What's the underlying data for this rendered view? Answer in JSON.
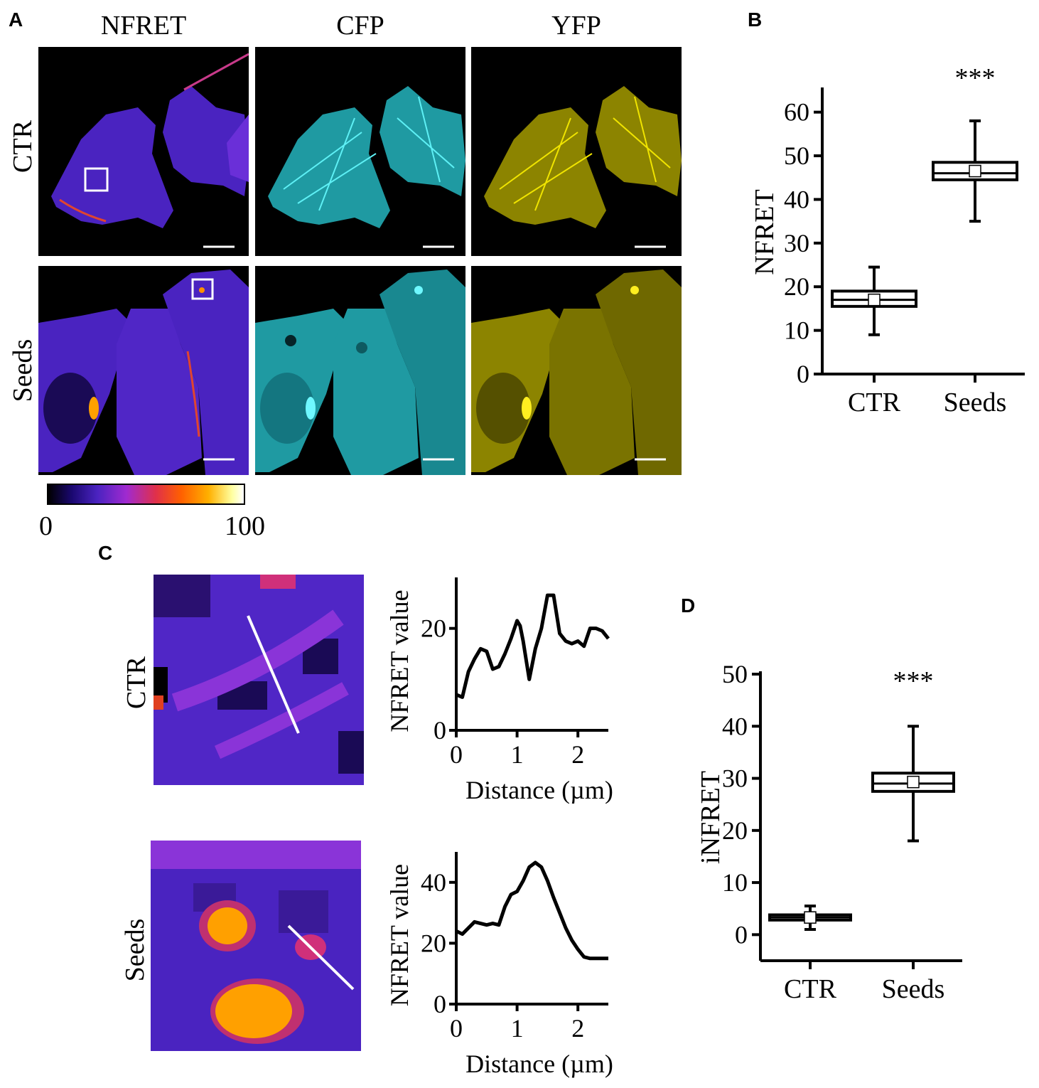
{
  "panels": {
    "a": {
      "letter": "A",
      "columns": [
        "NFRET",
        "CFP",
        "YFP"
      ],
      "rows": [
        "CTR",
        "Seeds"
      ],
      "colorbar": {
        "min": "0",
        "max": "100"
      }
    },
    "b": {
      "letter": "B"
    },
    "c": {
      "letter": "C",
      "rows": [
        "CTR",
        "Seeds"
      ]
    },
    "d": {
      "letter": "D"
    }
  },
  "colors": {
    "nfret_low": "#5a2bd8",
    "nfret_high": "#ff8a00",
    "cfp": "#35e0e6",
    "yfp": "#e6d800"
  },
  "chart_data": [
    {
      "id": "B",
      "type": "box",
      "ylabel": "NFRET",
      "categories": [
        "CTR",
        "Seeds"
      ],
      "ylim": [
        0,
        65
      ],
      "yticks": [
        0,
        10,
        20,
        30,
        40,
        50,
        60
      ],
      "boxes": [
        {
          "category": "CTR",
          "min": 9,
          "q1": 15.5,
          "median": 17,
          "mean": 17,
          "q3": 19,
          "max": 24.5
        },
        {
          "category": "Seeds",
          "min": 35,
          "q1": 44.5,
          "median": 46,
          "mean": 46.5,
          "q3": 48.5,
          "max": 58
        }
      ],
      "annotation": "***"
    },
    {
      "id": "C-CTR",
      "type": "line",
      "xlabel": "Distance (µm)",
      "ylabel": "NFRET value",
      "xlim": [
        0,
        2.5
      ],
      "ylim": [
        0,
        30
      ],
      "xticks": [
        0,
        1,
        2
      ],
      "yticks": [
        0,
        20
      ],
      "x": [
        0,
        0.1,
        0.2,
        0.3,
        0.4,
        0.5,
        0.6,
        0.7,
        0.8,
        0.9,
        1.0,
        1.05,
        1.1,
        1.2,
        1.3,
        1.4,
        1.5,
        1.6,
        1.7,
        1.8,
        1.9,
        2.0,
        2.1,
        2.2,
        2.3,
        2.4,
        2.5
      ],
      "y": [
        7,
        6.5,
        11.5,
        14,
        16,
        15.5,
        12,
        12.5,
        15,
        18,
        21.5,
        20.5,
        17.5,
        10,
        16,
        20,
        26.5,
        26.5,
        19,
        17.5,
        17,
        17.5,
        16.5,
        20,
        20,
        19.5,
        18
      ]
    },
    {
      "id": "C-Seeds",
      "type": "line",
      "xlabel": "Distance (µm)",
      "ylabel": "NFRET value",
      "xlim": [
        0,
        2.5
      ],
      "ylim": [
        0,
        50
      ],
      "xticks": [
        0,
        1,
        2
      ],
      "yticks": [
        0,
        20,
        40
      ],
      "x": [
        0,
        0.1,
        0.2,
        0.3,
        0.4,
        0.5,
        0.6,
        0.7,
        0.8,
        0.9,
        1.0,
        1.1,
        1.2,
        1.3,
        1.4,
        1.5,
        1.6,
        1.7,
        1.8,
        1.9,
        2.0,
        2.1,
        2.2,
        2.3,
        2.4,
        2.5
      ],
      "y": [
        24,
        23,
        25,
        27,
        26.5,
        26,
        26.5,
        26,
        32,
        36,
        37,
        40.5,
        45,
        46.5,
        45,
        40.5,
        35,
        30,
        25,
        21,
        18,
        15.5,
        15,
        15,
        15,
        15
      ]
    },
    {
      "id": "D",
      "type": "box",
      "ylabel": "iNFRET",
      "categories": [
        "CTR",
        "Seeds"
      ],
      "ylim": [
        -5,
        50
      ],
      "yticks": [
        0,
        10,
        20,
        30,
        40,
        50
      ],
      "boxes": [
        {
          "category": "CTR",
          "min": 1,
          "q1": 2.8,
          "median": 3.3,
          "mean": 3.3,
          "q3": 3.8,
          "max": 5.5
        },
        {
          "category": "Seeds",
          "min": 18,
          "q1": 27.5,
          "median": 29,
          "mean": 29.3,
          "q3": 31,
          "max": 40
        }
      ],
      "annotation": "***"
    }
  ]
}
